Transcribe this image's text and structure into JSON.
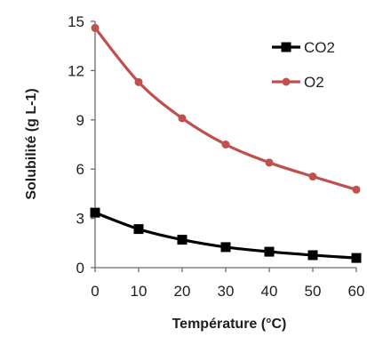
{
  "chart_data": {
    "type": "line",
    "xlabel": "Température (°C)",
    "ylabel": "Solubilité (g L-1)",
    "x": [
      0,
      10,
      20,
      30,
      40,
      50,
      60
    ],
    "xlim": [
      0,
      60
    ],
    "ylim": [
      0,
      15
    ],
    "xticks": [
      "0",
      "10",
      "20",
      "30",
      "40",
      "50",
      "60"
    ],
    "yticks": [
      "0",
      "3",
      "6",
      "9",
      "12",
      "15"
    ],
    "grid": false,
    "legend_position": "top-right",
    "series": [
      {
        "name": "CO2",
        "values": [
          3.35,
          2.35,
          1.7,
          1.25,
          0.97,
          0.76,
          0.59
        ],
        "color": "#000000",
        "marker": "square"
      },
      {
        "name": "O2",
        "values": [
          14.6,
          11.3,
          9.1,
          7.5,
          6.4,
          5.55,
          4.75
        ],
        "color": "#c0504d",
        "marker": "circle"
      }
    ]
  }
}
